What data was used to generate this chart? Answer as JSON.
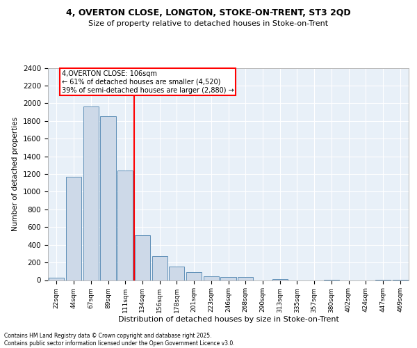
{
  "title1": "4, OVERTON CLOSE, LONGTON, STOKE-ON-TRENT, ST3 2QD",
  "title2": "Size of property relative to detached houses in Stoke-on-Trent",
  "xlabel": "Distribution of detached houses by size in Stoke-on-Trent",
  "ylabel": "Number of detached properties",
  "categories": [
    "22sqm",
    "44sqm",
    "67sqm",
    "89sqm",
    "111sqm",
    "134sqm",
    "156sqm",
    "178sqm",
    "201sqm",
    "223sqm",
    "246sqm",
    "268sqm",
    "290sqm",
    "313sqm",
    "335sqm",
    "357sqm",
    "380sqm",
    "402sqm",
    "424sqm",
    "447sqm",
    "469sqm"
  ],
  "values": [
    30,
    1170,
    1960,
    1850,
    1240,
    510,
    270,
    150,
    90,
    45,
    35,
    35,
    0,
    15,
    0,
    0,
    5,
    0,
    0,
    5,
    5
  ],
  "bar_color": "#cdd9e8",
  "bar_edge_color": "#6090b8",
  "vline_index": 4,
  "vline_color": "red",
  "annotation_title": "4,OVERTON CLOSE: 106sqm",
  "annotation_line1": "← 61% of detached houses are smaller (4,520)",
  "annotation_line2": "39% of semi-detached houses are larger (2,880) →",
  "annotation_box_color": "white",
  "annotation_box_edge": "red",
  "ylim": [
    0,
    2400
  ],
  "yticks": [
    0,
    200,
    400,
    600,
    800,
    1000,
    1200,
    1400,
    1600,
    1800,
    2000,
    2200,
    2400
  ],
  "bg_color": "#e8f0f8",
  "footer1": "Contains HM Land Registry data © Crown copyright and database right 2025.",
  "footer2": "Contains public sector information licensed under the Open Government Licence v3.0."
}
